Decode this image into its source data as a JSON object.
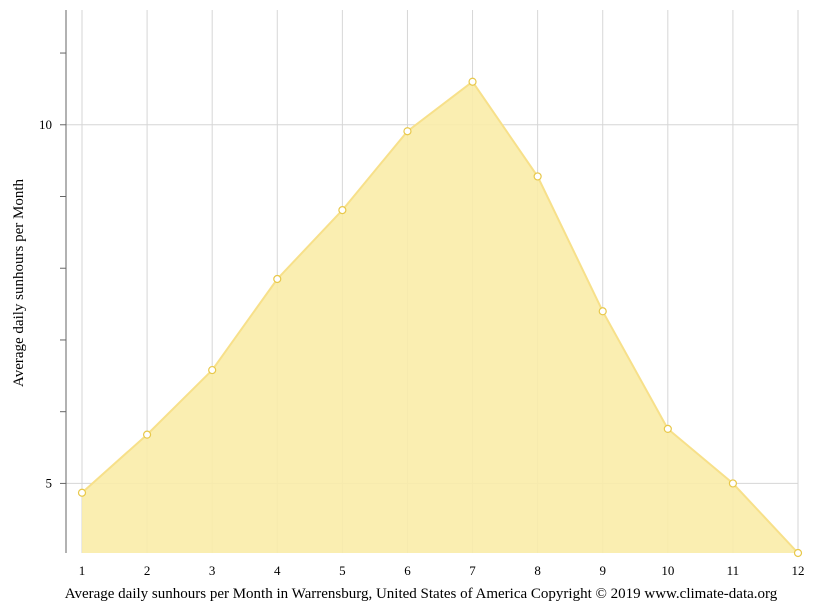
{
  "chart_data": {
    "type": "area",
    "title": "",
    "xlabel": "",
    "ylabel": "Average daily sunhours per Month",
    "caption": "Average daily sunhours per Month in Warrensburg, United States of America Copyright © 2019 www.climate-data.org",
    "x": [
      1,
      2,
      3,
      4,
      5,
      6,
      7,
      8,
      9,
      10,
      11,
      12
    ],
    "x_tick_labels": [
      "1",
      "2",
      "3",
      "4",
      "5",
      "6",
      "7",
      "8",
      "9",
      "10",
      "11",
      "12"
    ],
    "y_tick_labels": [
      "5",
      "10"
    ],
    "y_ticks_labeled": [
      5,
      10
    ],
    "y_ticks_minor": [
      6,
      7,
      8,
      9,
      11
    ],
    "ylim": [
      4.03,
      11.6
    ],
    "grid": true,
    "legend": "none",
    "series": [
      {
        "values": [
          4.87,
          5.68,
          6.58,
          7.85,
          8.81,
          9.91,
          10.6,
          9.28,
          7.4,
          5.76,
          5.0,
          4.03
        ]
      }
    ],
    "colors": {
      "fill": "#f9eca8",
      "line": "#f7e08a",
      "marker_fill": "#ffffff",
      "marker_stroke": "#e8c84a",
      "grid": "#d6d6d6",
      "axis": "#666666"
    }
  }
}
